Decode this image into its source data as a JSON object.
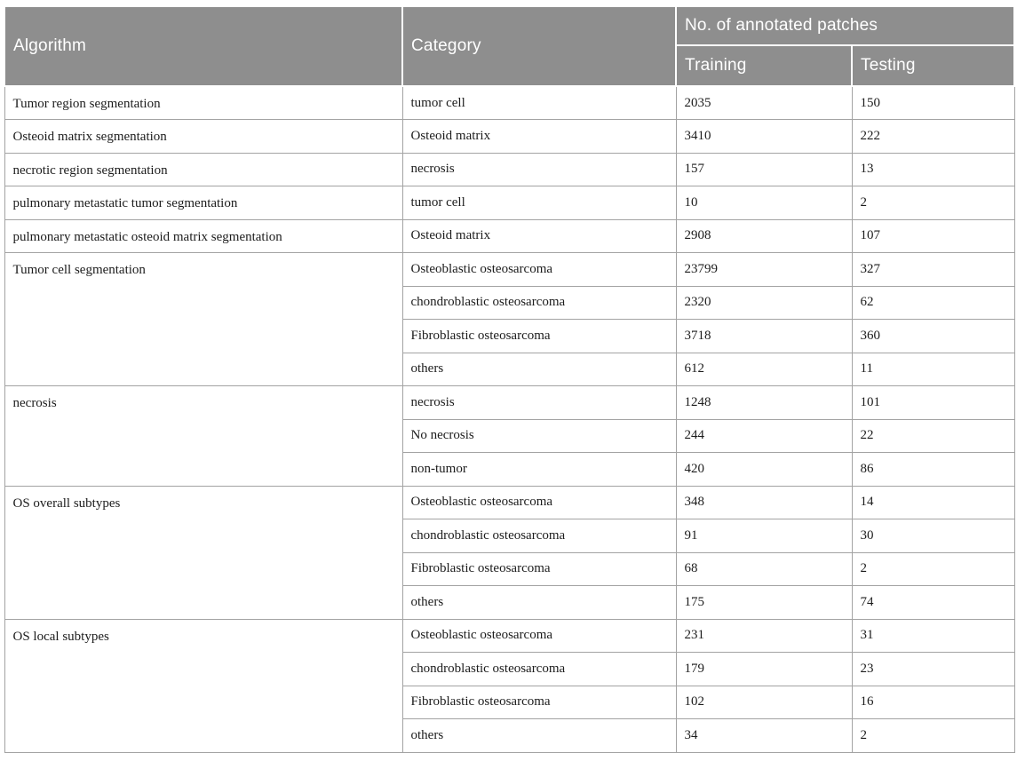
{
  "table": {
    "headers": {
      "algorithm": "Algorithm",
      "category": "Category",
      "patches": "No. of annotated patches",
      "training": "Training",
      "testing": "Testing"
    },
    "groups": [
      {
        "algorithm": "Tumor region segmentation",
        "rows": [
          {
            "category": "tumor cell",
            "training": "2035",
            "testing": "150"
          }
        ]
      },
      {
        "algorithm": "Osteoid matrix segmentation",
        "rows": [
          {
            "category": "Osteoid matrix",
            "training": "3410",
            "testing": "222"
          }
        ]
      },
      {
        "algorithm": "necrotic region segmentation",
        "rows": [
          {
            "category": "necrosis",
            "training": "157",
            "testing": "13"
          }
        ]
      },
      {
        "algorithm": "pulmonary metastatic tumor segmentation",
        "rows": [
          {
            "category": "tumor cell",
            "training": "10",
            "testing": "2"
          }
        ]
      },
      {
        "algorithm": "pulmonary metastatic osteoid matrix segmentation",
        "rows": [
          {
            "category": "Osteoid matrix",
            "training": "2908",
            "testing": "107"
          }
        ]
      },
      {
        "algorithm": "Tumor cell segmentation",
        "rows": [
          {
            "category": "Osteoblastic osteosarcoma",
            "training": "23799",
            "testing": "327"
          },
          {
            "category": "chondroblastic osteosarcoma",
            "training": "2320",
            "testing": "62"
          },
          {
            "category": "Fibroblastic osteosarcoma",
            "training": "3718",
            "testing": "360"
          },
          {
            "category": "others",
            "training": "612",
            "testing": "11"
          }
        ]
      },
      {
        "algorithm": "necrosis",
        "rows": [
          {
            "category": "necrosis",
            "training": "1248",
            "testing": "101"
          },
          {
            "category": "No necrosis",
            "training": "244",
            "testing": "22"
          },
          {
            "category": "non-tumor",
            "training": "420",
            "testing": "86"
          }
        ]
      },
      {
        "algorithm": "OS overall subtypes",
        "rows": [
          {
            "category": "Osteoblastic osteosarcoma",
            "training": "348",
            "testing": "14"
          },
          {
            "category": "chondroblastic osteosarcoma",
            "training": "91",
            "testing": "30"
          },
          {
            "category": "Fibroblastic osteosarcoma",
            "training": "68",
            "testing": "2"
          },
          {
            "category": "others",
            "training": "175",
            "testing": "74"
          }
        ]
      },
      {
        "algorithm": "OS local subtypes",
        "rows": [
          {
            "category": "Osteoblastic osteosarcoma",
            "training": "231",
            "testing": "31"
          },
          {
            "category": "chondroblastic osteosarcoma",
            "training": "179",
            "testing": "23"
          },
          {
            "category": "Fibroblastic osteosarcoma",
            "training": "102",
            "testing": "16"
          },
          {
            "category": "others",
            "training": "34",
            "testing": "2"
          }
        ]
      }
    ],
    "colors": {
      "header_bg": "#8e8e8e",
      "header_text": "#ffffff",
      "border": "#a3a3a3",
      "body_text": "#1c1c1c"
    }
  }
}
